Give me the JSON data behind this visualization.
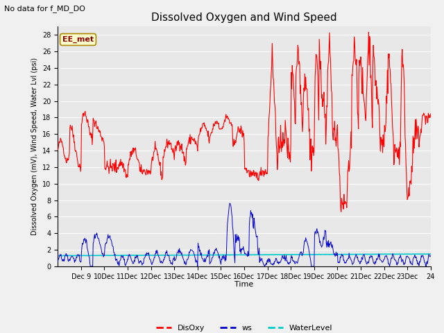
{
  "title": "Dissolved Oxygen and Wind Speed",
  "ylabel": "Dissolved Oxygen (mV), Wind Speed, Water Lvl (psi)",
  "xlabel": "Time",
  "top_left_text": "No data for f_MD_DO",
  "annotation_box": "EE_met",
  "ylim": [
    0,
    29
  ],
  "yticks": [
    0,
    2,
    4,
    6,
    8,
    10,
    12,
    14,
    16,
    18,
    20,
    22,
    24,
    26,
    28
  ],
  "xlim": [
    8,
    24
  ],
  "disoxy_color": "#FF0000",
  "ws_color": "#0000CC",
  "waterlevel_color": "#00CCCC",
  "background_color": "#E8E8E8",
  "grid_color": "#FFFFFF",
  "fig_bg_color": "#F0F0F0",
  "legend_labels": [
    "DisOxy",
    "ws",
    "WaterLevel"
  ],
  "xtick_positions": [
    9,
    10,
    11,
    12,
    13,
    14,
    15,
    16,
    17,
    18,
    19,
    20,
    21,
    22,
    23,
    24
  ],
  "xtick_labels": [
    "Dec 9",
    "10Dec",
    "11Dec",
    "12Dec",
    "13Dec",
    "14Dec",
    "15Dec",
    "16Dec",
    "17Dec",
    "18Dec",
    "19Dec",
    "20Dec",
    "21Dec",
    "22Dec",
    "23Dec",
    "24"
  ],
  "title_fontsize": 11,
  "ylabel_fontsize": 7,
  "xlabel_fontsize": 8,
  "tick_fontsize": 7,
  "legend_fontsize": 8,
  "annotation_fontsize": 8
}
